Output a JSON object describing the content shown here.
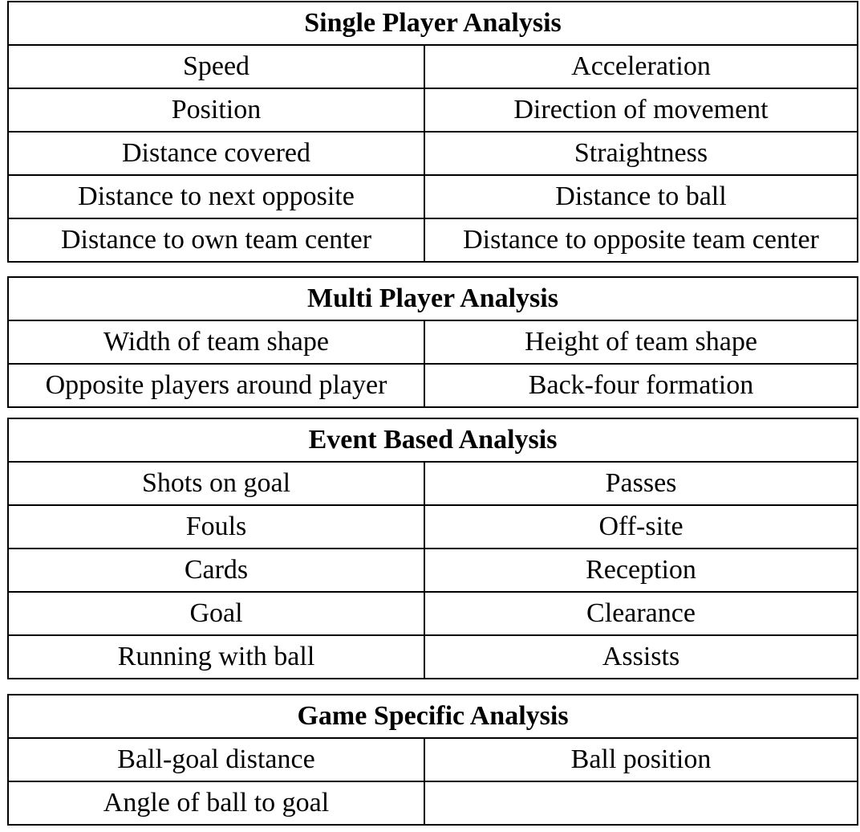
{
  "sections": [
    {
      "title": "Single Player Analysis",
      "rows": [
        [
          "Speed",
          "Acceleration"
        ],
        [
          "Position",
          "Direction of movement"
        ],
        [
          "Distance covered",
          "Straightness"
        ],
        [
          "Distance to next opposite",
          "Distance to ball"
        ],
        [
          "Distance to own team center",
          "Distance to opposite team center"
        ]
      ]
    },
    {
      "title": "Multi Player Analysis",
      "rows": [
        [
          "Width of team shape",
          "Height of team shape"
        ],
        [
          "Opposite players around player",
          "Back-four formation"
        ]
      ]
    },
    {
      "title": "Event Based Analysis",
      "rows": [
        [
          "Shots on goal",
          "Passes"
        ],
        [
          "Fouls",
          "Off-site"
        ],
        [
          "Cards",
          "Reception"
        ],
        [
          "Goal",
          "Clearance"
        ],
        [
          "Running with ball",
          "Assists"
        ]
      ]
    },
    {
      "title": "Game Specific Analysis",
      "rows": [
        [
          "Ball-goal distance",
          "Ball position"
        ],
        [
          "Angle of ball to goal",
          ""
        ]
      ]
    }
  ]
}
